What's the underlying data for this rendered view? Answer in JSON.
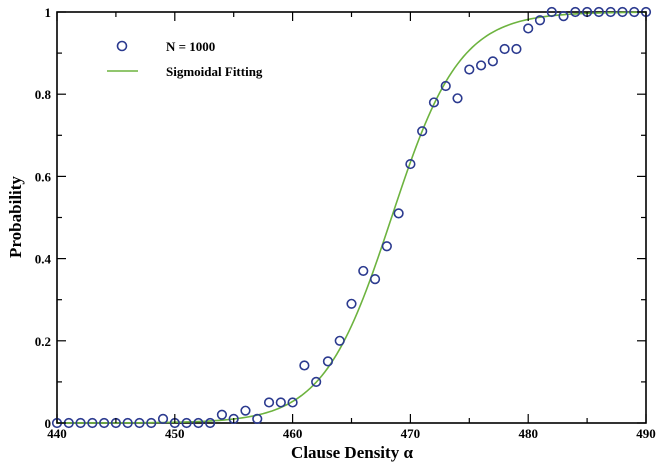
{
  "chart_data": {
    "type": "scatter",
    "xlabel": "Clause Density α",
    "ylabel": "Probability",
    "xlim": [
      440,
      490
    ],
    "ylim": [
      0,
      1
    ],
    "x_ticks": [
      "440",
      "450",
      "460",
      "470",
      "480",
      "490"
    ],
    "y_ticks": [
      "0",
      "0.2",
      "0.4",
      "0.6",
      "0.8",
      "1"
    ],
    "grid": false,
    "legend_position": "top-left",
    "series": [
      {
        "name": "N = 1000",
        "kind": "points",
        "marker": "open-circle",
        "color": "#2b3a8f",
        "x": [
          440,
          441,
          442,
          443,
          444,
          445,
          446,
          447,
          448,
          449,
          450,
          451,
          452,
          453,
          454,
          455,
          456,
          457,
          458,
          459,
          460,
          461,
          462,
          463,
          464,
          465,
          466,
          467,
          468,
          469,
          470,
          471,
          472,
          473,
          474,
          475,
          476,
          477,
          478,
          479,
          480,
          481,
          482,
          483,
          484,
          485,
          486,
          487,
          488,
          489,
          490
        ],
        "y": [
          0,
          0,
          0,
          0,
          0,
          0,
          0,
          0,
          0,
          0.01,
          0,
          0,
          0,
          0,
          0.02,
          0.01,
          0.03,
          0.01,
          0.05,
          0.05,
          0.05,
          0.14,
          0.1,
          0.15,
          0.2,
          0.29,
          0.37,
          0.35,
          0.43,
          0.51,
          0.63,
          0.71,
          0.78,
          0.82,
          0.79,
          0.86,
          0.87,
          0.88,
          0.91,
          0.91,
          0.96,
          0.98,
          1,
          0.99,
          1,
          1,
          1,
          1,
          1,
          1,
          1
        ]
      },
      {
        "name": "Sigmoidal Fitting",
        "kind": "curve",
        "color": "#6db33f",
        "function": "1/(1+exp(-(x-468.4)/2.9))"
      }
    ]
  }
}
